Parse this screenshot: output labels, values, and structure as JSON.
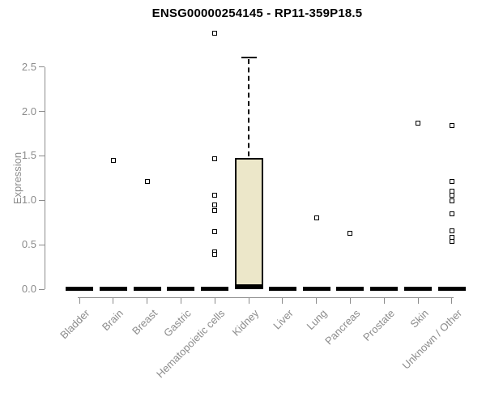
{
  "chart_data": {
    "type": "boxplot",
    "title": "ENSG00000254145 - RP11-359P18.5",
    "ylabel": "Expression",
    "xlabel": "",
    "ylim": [
      0.0,
      2.9
    ],
    "yticks": [
      "0.0",
      "0.5",
      "1.0",
      "1.5",
      "2.0",
      "2.5"
    ],
    "grid": false,
    "legend": "none",
    "categories": [
      "Bladder",
      "Brain",
      "Breast",
      "Gastric",
      "Hematopoietic cells",
      "Kidney",
      "Liver",
      "Lung",
      "Pancreas",
      "Prostate",
      "Skin",
      "Unknown / Other"
    ],
    "boxes": [
      {
        "category": "Bladder",
        "median": 0,
        "q1": 0,
        "q3": 0,
        "whisker_low": 0,
        "whisker_high": 0,
        "outliers": []
      },
      {
        "category": "Brain",
        "median": 0,
        "q1": 0,
        "q3": 0,
        "whisker_low": 0,
        "whisker_high": 0,
        "outliers": [
          1.45
        ]
      },
      {
        "category": "Breast",
        "median": 0,
        "q1": 0,
        "q3": 0,
        "whisker_low": 0,
        "whisker_high": 0,
        "outliers": [
          1.21
        ]
      },
      {
        "category": "Gastric",
        "median": 0,
        "q1": 0,
        "q3": 0,
        "whisker_low": 0,
        "whisker_high": 0,
        "outliers": []
      },
      {
        "category": "Hematopoietic cells",
        "median": 0,
        "q1": 0,
        "q3": 0,
        "whisker_low": 0,
        "whisker_high": 0,
        "outliers": [
          2.88,
          1.47,
          1.06,
          0.95,
          0.88,
          0.65,
          0.42,
          0.39
        ]
      },
      {
        "category": "Kidney",
        "median": 0.02,
        "q1": 0,
        "q3": 1.48,
        "whisker_low": 0,
        "whisker_high": 2.61,
        "outliers": []
      },
      {
        "category": "Liver",
        "median": 0,
        "q1": 0,
        "q3": 0,
        "whisker_low": 0,
        "whisker_high": 0,
        "outliers": []
      },
      {
        "category": "Lung",
        "median": 0,
        "q1": 0,
        "q3": 0,
        "whisker_low": 0,
        "whisker_high": 0,
        "outliers": [
          0.8
        ]
      },
      {
        "category": "Pancreas",
        "median": 0,
        "q1": 0,
        "q3": 0,
        "whisker_low": 0,
        "whisker_high": 0,
        "outliers": [
          0.63
        ]
      },
      {
        "category": "Prostate",
        "median": 0,
        "q1": 0,
        "q3": 0,
        "whisker_low": 0,
        "whisker_high": 0,
        "outliers": []
      },
      {
        "category": "Skin",
        "median": 0,
        "q1": 0,
        "q3": 0,
        "whisker_low": 0,
        "whisker_high": 0,
        "outliers": [
          1.87
        ]
      },
      {
        "category": "Unknown / Other",
        "median": 0,
        "q1": 0,
        "q3": 0,
        "whisker_low": 0,
        "whisker_high": 0,
        "outliers": [
          1.84,
          1.21,
          1.1,
          1.06,
          0.99,
          0.85,
          0.66,
          0.58,
          0.54
        ]
      }
    ],
    "colors": {
      "box_fill": "#ECE7C9",
      "box_border": "#000000",
      "median": "#000000",
      "outlier": "#000000",
      "axis": "#8C8C8C",
      "title": "#000000"
    }
  }
}
